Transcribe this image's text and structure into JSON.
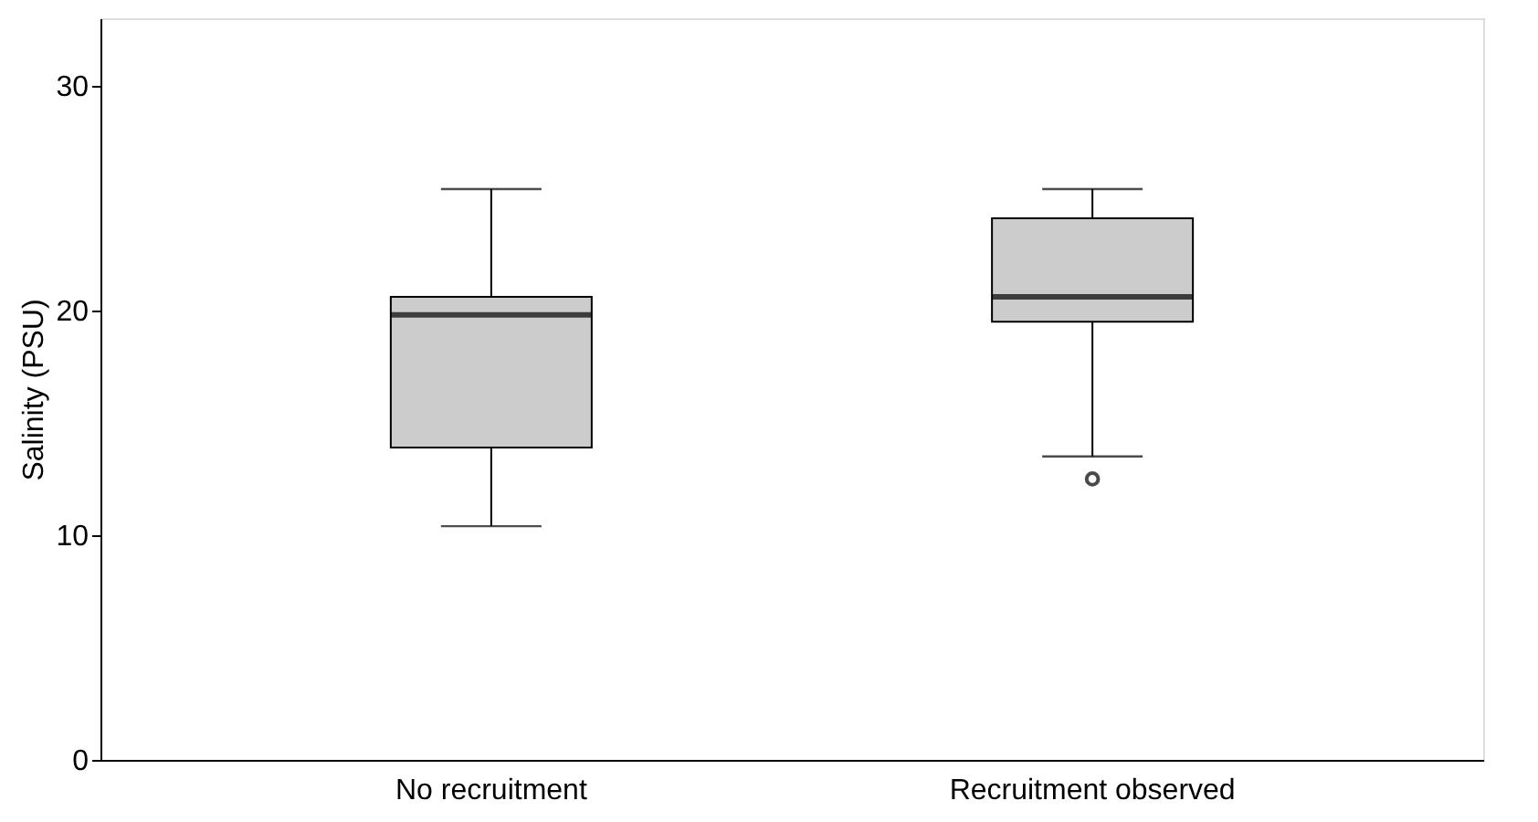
{
  "chart_data": {
    "type": "box",
    "ylabel": "Salinity (PSU)",
    "categories": [
      "No recruitment",
      "Recruitment observed"
    ],
    "ylim": [
      0,
      33
    ],
    "yticks": [
      0,
      10,
      20,
      30
    ],
    "grid": false,
    "series": [
      {
        "color": "#cccccc",
        "boxes": [
          {
            "low": 10.4,
            "q1": 13.9,
            "median": 19.8,
            "q3": 20.6,
            "high": 25.4
          },
          {
            "low": 13.5,
            "q1": 19.5,
            "median": 20.6,
            "q3": 24.1,
            "high": 25.4,
            "outliers": [
              12.5
            ]
          }
        ]
      }
    ]
  }
}
